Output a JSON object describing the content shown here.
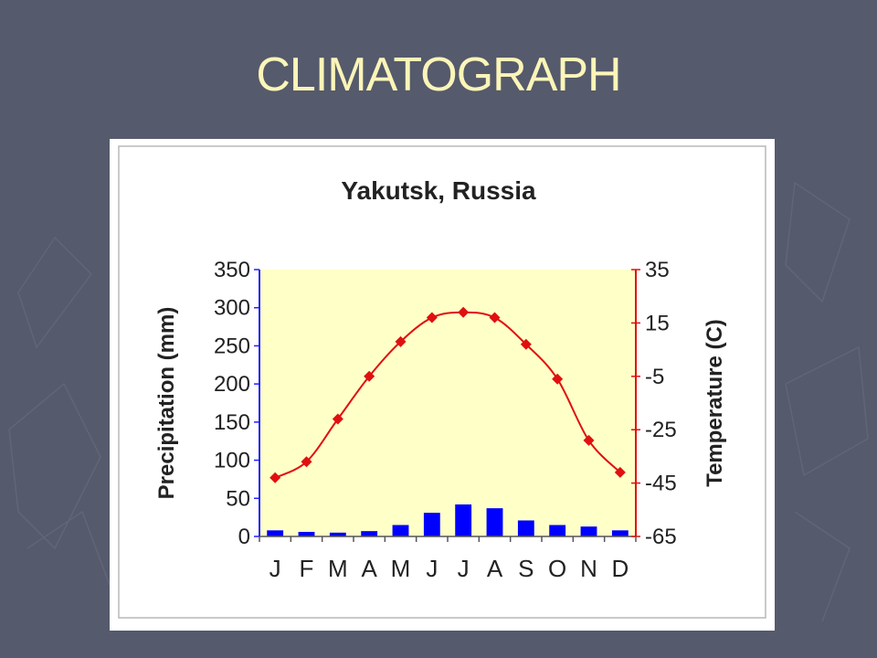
{
  "slide": {
    "title": "CLIMATOGRAPH"
  },
  "chart_data": {
    "type": "bar+line",
    "title": "Yakutsk, Russia",
    "categories": [
      "J",
      "F",
      "M",
      "A",
      "M",
      "J",
      "J",
      "A",
      "S",
      "O",
      "N",
      "D"
    ],
    "series": [
      {
        "name": "Precipitation",
        "kind": "bar",
        "axis": "left",
        "color": "#0000ff",
        "values": [
          8,
          6,
          5,
          7,
          15,
          31,
          42,
          37,
          21,
          15,
          13,
          8
        ]
      },
      {
        "name": "Temperature",
        "kind": "line",
        "axis": "right",
        "color": "#e01010",
        "values": [
          -43,
          -37,
          -21,
          -5,
          8,
          17,
          19,
          17,
          7,
          -6,
          -29,
          -41
        ]
      }
    ],
    "y_left": {
      "label": "Precipitation (mm)",
      "range": [
        0,
        350
      ],
      "ticks": [
        "350",
        "300",
        "250",
        "200",
        "150",
        "100",
        "50",
        "0"
      ]
    },
    "y_right": {
      "label": "Temperature (C)",
      "range": [
        -65,
        35
      ],
      "ticks": [
        "35",
        "15",
        "-5",
        "-25",
        "-45",
        "-65"
      ]
    },
    "plot_background": "#ffffc8",
    "grid": false
  }
}
